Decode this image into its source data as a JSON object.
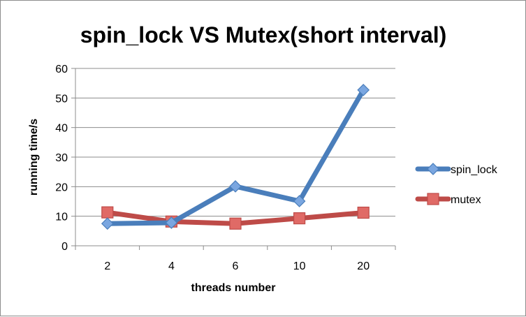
{
  "colors": {
    "spin_lock_line": "#4a7ebb",
    "spin_lock_marker": "#7aa6e0",
    "mutex_line": "#be4b48",
    "mutex_marker": "#e06a66",
    "grid": "#8c8c8c",
    "axis": "#8c8c8c"
  },
  "chart_data": {
    "type": "line",
    "title": "spin_lock VS Mutex(short interval)",
    "xlabel": "threads  number",
    "ylabel": "running time/s",
    "categories": [
      "2",
      "4",
      "6",
      "10",
      "20"
    ],
    "ylim": [
      0,
      60
    ],
    "yticks": [
      0,
      10,
      20,
      30,
      40,
      50,
      60
    ],
    "grid": true,
    "legend_position": "right",
    "series": [
      {
        "name": "spin_lock",
        "marker": "diamond",
        "values": [
          7.5,
          7.8,
          20.1,
          15.1,
          52.7
        ]
      },
      {
        "name": "mutex",
        "marker": "square",
        "values": [
          11.3,
          8.2,
          7.5,
          9.3,
          11.2
        ]
      }
    ]
  }
}
